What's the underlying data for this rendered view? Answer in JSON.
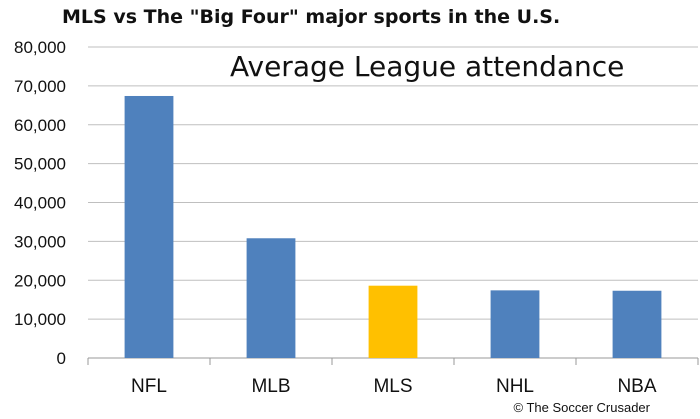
{
  "chart_data": {
    "type": "bar",
    "title": "MLS vs The \"Big Four\" major sports in the U.S.",
    "subtitle": "Average League attendance",
    "categories": [
      "NFL",
      "MLB",
      "MLS",
      "NHL",
      "NBA"
    ],
    "values": [
      67400,
      30800,
      18600,
      17400,
      17300
    ],
    "colors": [
      "#4F81BD",
      "#4F81BD",
      "#FFC000",
      "#4F81BD",
      "#4F81BD"
    ],
    "ylim": [
      0,
      80000
    ],
    "yticks": [
      0,
      10000,
      20000,
      30000,
      40000,
      50000,
      60000,
      70000,
      80000
    ],
    "ytick_labels": [
      "0",
      "10,000",
      "20,000",
      "30,000",
      "40,000",
      "50,000",
      "60,000",
      "70,000",
      "80,000"
    ],
    "grid": true,
    "gridline_color": "#BFBFBF",
    "xlabel": "",
    "ylabel": ""
  },
  "credit": "© The Soccer Crusader"
}
